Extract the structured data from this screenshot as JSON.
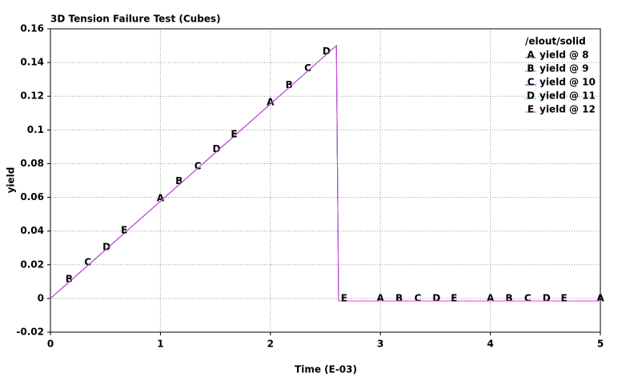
{
  "chart_data": {
    "type": "line",
    "title": "3D Tension Failure Test (Cubes)",
    "xlabel": "Time (E-03)",
    "ylabel": "yield",
    "legend_title": "/elout/solid",
    "legend": "upper right",
    "xlim": [
      0,
      5
    ],
    "xticks": [
      0,
      1,
      2,
      3,
      4,
      5
    ],
    "ylim": [
      -0.02,
      0.16
    ],
    "yticks": [
      -0.02,
      0,
      0.02,
      0.04,
      0.06,
      0.08,
      0.1,
      0.12,
      0.14,
      0.16
    ],
    "grid": true,
    "series": [
      {
        "name": "yield @ 8",
        "symbol": "A",
        "color": "#e03030",
        "x": [
          0,
          2.6,
          2.62,
          5
        ],
        "values": [
          0,
          0.15,
          -0.0015,
          -0.0015
        ],
        "marker_x": [
          1.0,
          2.0,
          3.0,
          4.0,
          5.0
        ],
        "marker_values": [
          0.058,
          0.115,
          -0.0015,
          -0.0015,
          -0.0015
        ]
      },
      {
        "name": "yield @ 9",
        "symbol": "B",
        "color": "#30b030",
        "x": [
          0,
          2.6,
          2.62,
          5
        ],
        "values": [
          0,
          0.15,
          -0.0015,
          -0.0015
        ],
        "marker_x": [
          0.17,
          1.17,
          2.17,
          3.17,
          4.17
        ],
        "marker_values": [
          0.01,
          0.068,
          0.125,
          -0.0015,
          -0.0015
        ]
      },
      {
        "name": "yield @ 10",
        "symbol": "C",
        "color": "#3030e0",
        "x": [
          0,
          2.6,
          2.62,
          5
        ],
        "values": [
          0,
          0.15,
          -0.0015,
          -0.0015
        ],
        "marker_x": [
          0.34,
          1.34,
          2.34,
          3.34,
          4.34
        ],
        "marker_values": [
          0.02,
          0.077,
          0.135,
          -0.0015,
          -0.0015
        ]
      },
      {
        "name": "yield @ 11",
        "symbol": "D",
        "color": "#30c0c0",
        "x": [
          0,
          2.6,
          2.62,
          5
        ],
        "values": [
          0,
          0.15,
          -0.0015,
          -0.0015
        ],
        "marker_x": [
          0.51,
          1.51,
          2.51,
          3.51,
          4.51
        ],
        "marker_values": [
          0.029,
          0.087,
          0.145,
          -0.0015,
          -0.0015
        ]
      },
      {
        "name": "yield @ 12",
        "symbol": "E",
        "color": "#e040e0",
        "x": [
          0,
          2.6,
          2.62,
          5
        ],
        "values": [
          0,
          0.15,
          -0.0015,
          -0.0015
        ],
        "marker_x": [
          0.67,
          1.67,
          2.67,
          3.67,
          4.67
        ],
        "marker_values": [
          0.039,
          0.096,
          -0.0015,
          -0.0015,
          -0.0015
        ]
      }
    ]
  }
}
